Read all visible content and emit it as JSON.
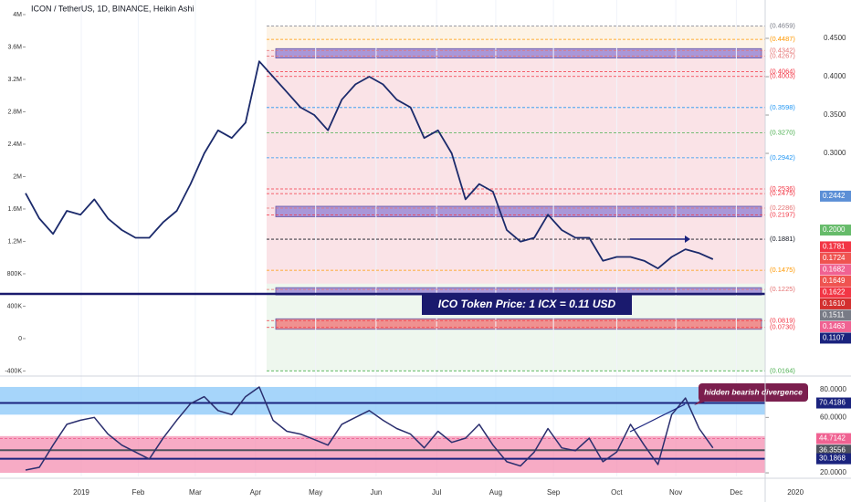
{
  "header": {
    "title": "ICON / TetherUS, 1D, BINANCE, Heikin Ashi"
  },
  "chart_data": [
    {
      "type": "line",
      "x": [
        0,
        1,
        2,
        3,
        4,
        5,
        6,
        7,
        8,
        9,
        10,
        11,
        12,
        13,
        14,
        15,
        16,
        17,
        18,
        19,
        20,
        21,
        22,
        23,
        24,
        25,
        26,
        27,
        28,
        29,
        30,
        31,
        32,
        33,
        34,
        35,
        36,
        37,
        38,
        39,
        40,
        41,
        42,
        43,
        44,
        45,
        46,
        47,
        48,
        49,
        50
      ],
      "xlim": [
        0,
        53.8
      ],
      "ylim": [
        -440000,
        4180000
      ],
      "yticks": [
        {
          "value": 4000000,
          "label": "4M"
        },
        {
          "value": 3600000,
          "label": "3.6M"
        },
        {
          "value": 3200000,
          "label": "3.2M"
        },
        {
          "value": 2800000,
          "label": "2.8M"
        },
        {
          "value": 2400000,
          "label": "2.4M"
        },
        {
          "value": 2000000,
          "label": "2M"
        },
        {
          "value": 1600000,
          "label": "1.6M"
        },
        {
          "value": 1200000,
          "label": "1.2M"
        },
        {
          "value": 800000,
          "label": "800K"
        },
        {
          "value": 400000,
          "label": "400K"
        },
        0,
        {
          "value": -400000,
          "label": "-400K"
        }
      ],
      "y2lim": [
        0.012,
        0.5
      ],
      "y2ticks": [
        {
          "value": 0.45,
          "label": "0.4500"
        },
        {
          "value": 0.4,
          "label": "0.4000"
        },
        {
          "value": 0.35,
          "label": "0.3500"
        },
        {
          "value": 0.3,
          "label": "0.3000"
        }
      ],
      "series": [
        {
          "color": "#1b2a6b",
          "axis": "y2",
          "values": [
            0.248,
            0.215,
            0.195,
            0.225,
            0.22,
            0.24,
            0.215,
            0.2,
            0.19,
            0.19,
            0.21,
            0.225,
            0.26,
            0.3,
            0.33,
            0.32,
            0.34,
            0.42,
            0.4,
            0.38,
            0.36,
            0.35,
            0.33,
            0.37,
            0.39,
            0.4,
            0.39,
            0.37,
            0.36,
            0.32,
            0.33,
            0.3,
            0.24,
            0.26,
            0.25,
            0.2,
            0.185,
            0.19,
            0.22,
            0.2,
            0.19,
            0.19,
            0.16,
            0.165,
            0.165,
            0.16,
            0.15,
            0.165,
            0.175,
            0.17,
            0.162
          ]
        }
      ],
      "levels": [
        {
          "value": 0.4659,
          "label": "(0.4659)",
          "color": "#787b86"
        },
        {
          "value": 0.4487,
          "label": "(0.4487)",
          "color": "#ff9800"
        },
        {
          "value": 0.4342,
          "label": "(0.4342)",
          "color": "#e57373"
        },
        {
          "value": 0.4267,
          "label": "(0.4267)",
          "color": "#e57373"
        },
        {
          "value": 0.4064,
          "label": "(0.4064)",
          "color": "#f23645"
        },
        {
          "value": 0.4003,
          "label": "(0.4003)",
          "color": "#f23645"
        },
        {
          "value": 0.3598,
          "label": "(0.3598)",
          "color": "#2196f3"
        },
        {
          "value": 0.327,
          "label": "(0.3270)",
          "color": "#4caf50"
        },
        {
          "value": 0.2942,
          "label": "(0.2942)",
          "color": "#2196f3"
        },
        {
          "value": 0.2536,
          "label": "(0.2536)",
          "color": "#f23645"
        },
        {
          "value": 0.2475,
          "label": "(0.2475)",
          "color": "#f23645"
        },
        {
          "value": 0.2286,
          "label": "(0.2286)",
          "color": "#e57373"
        },
        {
          "value": 0.2197,
          "label": "(0.2197)",
          "color": "#f23645"
        },
        {
          "value": 0.1881,
          "label": "(0.1881)",
          "color": "#131722"
        },
        {
          "value": 0.1475,
          "label": "(0.1475)",
          "color": "#ff9800"
        },
        {
          "value": 0.1225,
          "label": "(0.1225)",
          "color": "#e57373"
        },
        {
          "value": 0.0819,
          "label": "(0.0819)",
          "color": "#f23645"
        },
        {
          "value": 0.073,
          "label": "(0.0730)",
          "color": "#f23645"
        },
        {
          "value": 0.0164,
          "label": "(0.0164)",
          "color": "#4caf50"
        }
      ],
      "price_tags": [
        {
          "value": 0.2442,
          "label": "0.2442",
          "color": "#5b8fd6"
        },
        {
          "value": 0.2,
          "label": "0.2000",
          "color": "#66bb6a"
        },
        {
          "value": 0.1781,
          "label": "0.1781",
          "color": "#f23645"
        },
        {
          "value": 0.1724,
          "label": "0.1724",
          "color": "#ef5350"
        },
        {
          "value": 0.1682,
          "label": "0.1682",
          "color": "#f06292"
        },
        {
          "value": 0.1649,
          "label": "0.1649",
          "color": "#ef5350"
        },
        {
          "value": 0.1622,
          "label": "0.1622",
          "color": "#f23645"
        },
        {
          "value": 0.161,
          "label": "0.1610",
          "color": "#d32f2f"
        },
        {
          "value": 0.1511,
          "label": "0.1511",
          "color": "#787b86"
        },
        {
          "value": 0.1463,
          "label": "0.1463",
          "color": "#f06292"
        },
        {
          "value": 0.1107,
          "label": "0.1107",
          "color": "#1a237e"
        }
      ],
      "annotation": "ICO Token Price: 1 ICX = 0.11 USD"
    },
    {
      "type": "line",
      "x": [
        0,
        1,
        2,
        3,
        4,
        5,
        6,
        7,
        8,
        9,
        10,
        11,
        12,
        13,
        14,
        15,
        16,
        17,
        18,
        19,
        20,
        21,
        22,
        23,
        24,
        25,
        26,
        27,
        28,
        29,
        30,
        31,
        32,
        33,
        34,
        35,
        36,
        37,
        38,
        39,
        40,
        41,
        42,
        43,
        44,
        45,
        46,
        47,
        48,
        49,
        50
      ],
      "xlim": [
        0,
        53.8
      ],
      "xticks": [
        {
          "value": 4.05,
          "label": "2019"
        },
        {
          "value": 8.2,
          "label": "Feb"
        },
        {
          "value": 12.35,
          "label": "Mar"
        },
        {
          "value": 16.73,
          "label": "Apr"
        },
        {
          "value": 21.1,
          "label": "May"
        },
        {
          "value": 25.5,
          "label": "Jun"
        },
        {
          "value": 29.9,
          "label": "Jul"
        },
        {
          "value": 34.2,
          "label": "Aug"
        },
        {
          "value": 38.4,
          "label": "Sep"
        },
        {
          "value": 43.0,
          "label": "Oct"
        },
        {
          "value": 47.3,
          "label": "Nov"
        },
        {
          "value": 51.7,
          "label": "Dec"
        },
        {
          "value": 56.0,
          "label": "2020"
        }
      ],
      "ylim": [
        17.4,
        87.9
      ],
      "yticks": [
        {
          "value": 80,
          "label": "80.0000"
        },
        {
          "value": 60,
          "label": "60.0000"
        },
        {
          "value": 20,
          "label": "20.0000"
        }
      ],
      "series": [
        {
          "color": "#2a2e6e",
          "values": [
            22,
            24,
            40,
            55,
            58,
            60,
            48,
            40,
            35,
            30,
            45,
            58,
            70,
            75,
            65,
            62,
            75,
            82,
            58,
            50,
            48,
            44,
            40,
            55,
            60,
            65,
            58,
            52,
            48,
            38,
            50,
            42,
            45,
            55,
            40,
            28,
            25,
            35,
            52,
            38,
            36,
            45,
            28,
            35,
            55,
            40,
            26,
            62,
            74,
            52,
            38
          ]
        }
      ],
      "value_tags": [
        {
          "value": 70.4186,
          "label": "70.4186",
          "color": "#1a237e"
        },
        {
          "value": 44.7142,
          "label": "44.7142",
          "color": "#f06292"
        },
        {
          "value": 36.3556,
          "label": "36.3556",
          "color": "#50535e"
        },
        {
          "value": 30.1868,
          "label": "30.1868",
          "color": "#1a237e"
        }
      ],
      "annotation": "hidden bearish divergence"
    }
  ]
}
